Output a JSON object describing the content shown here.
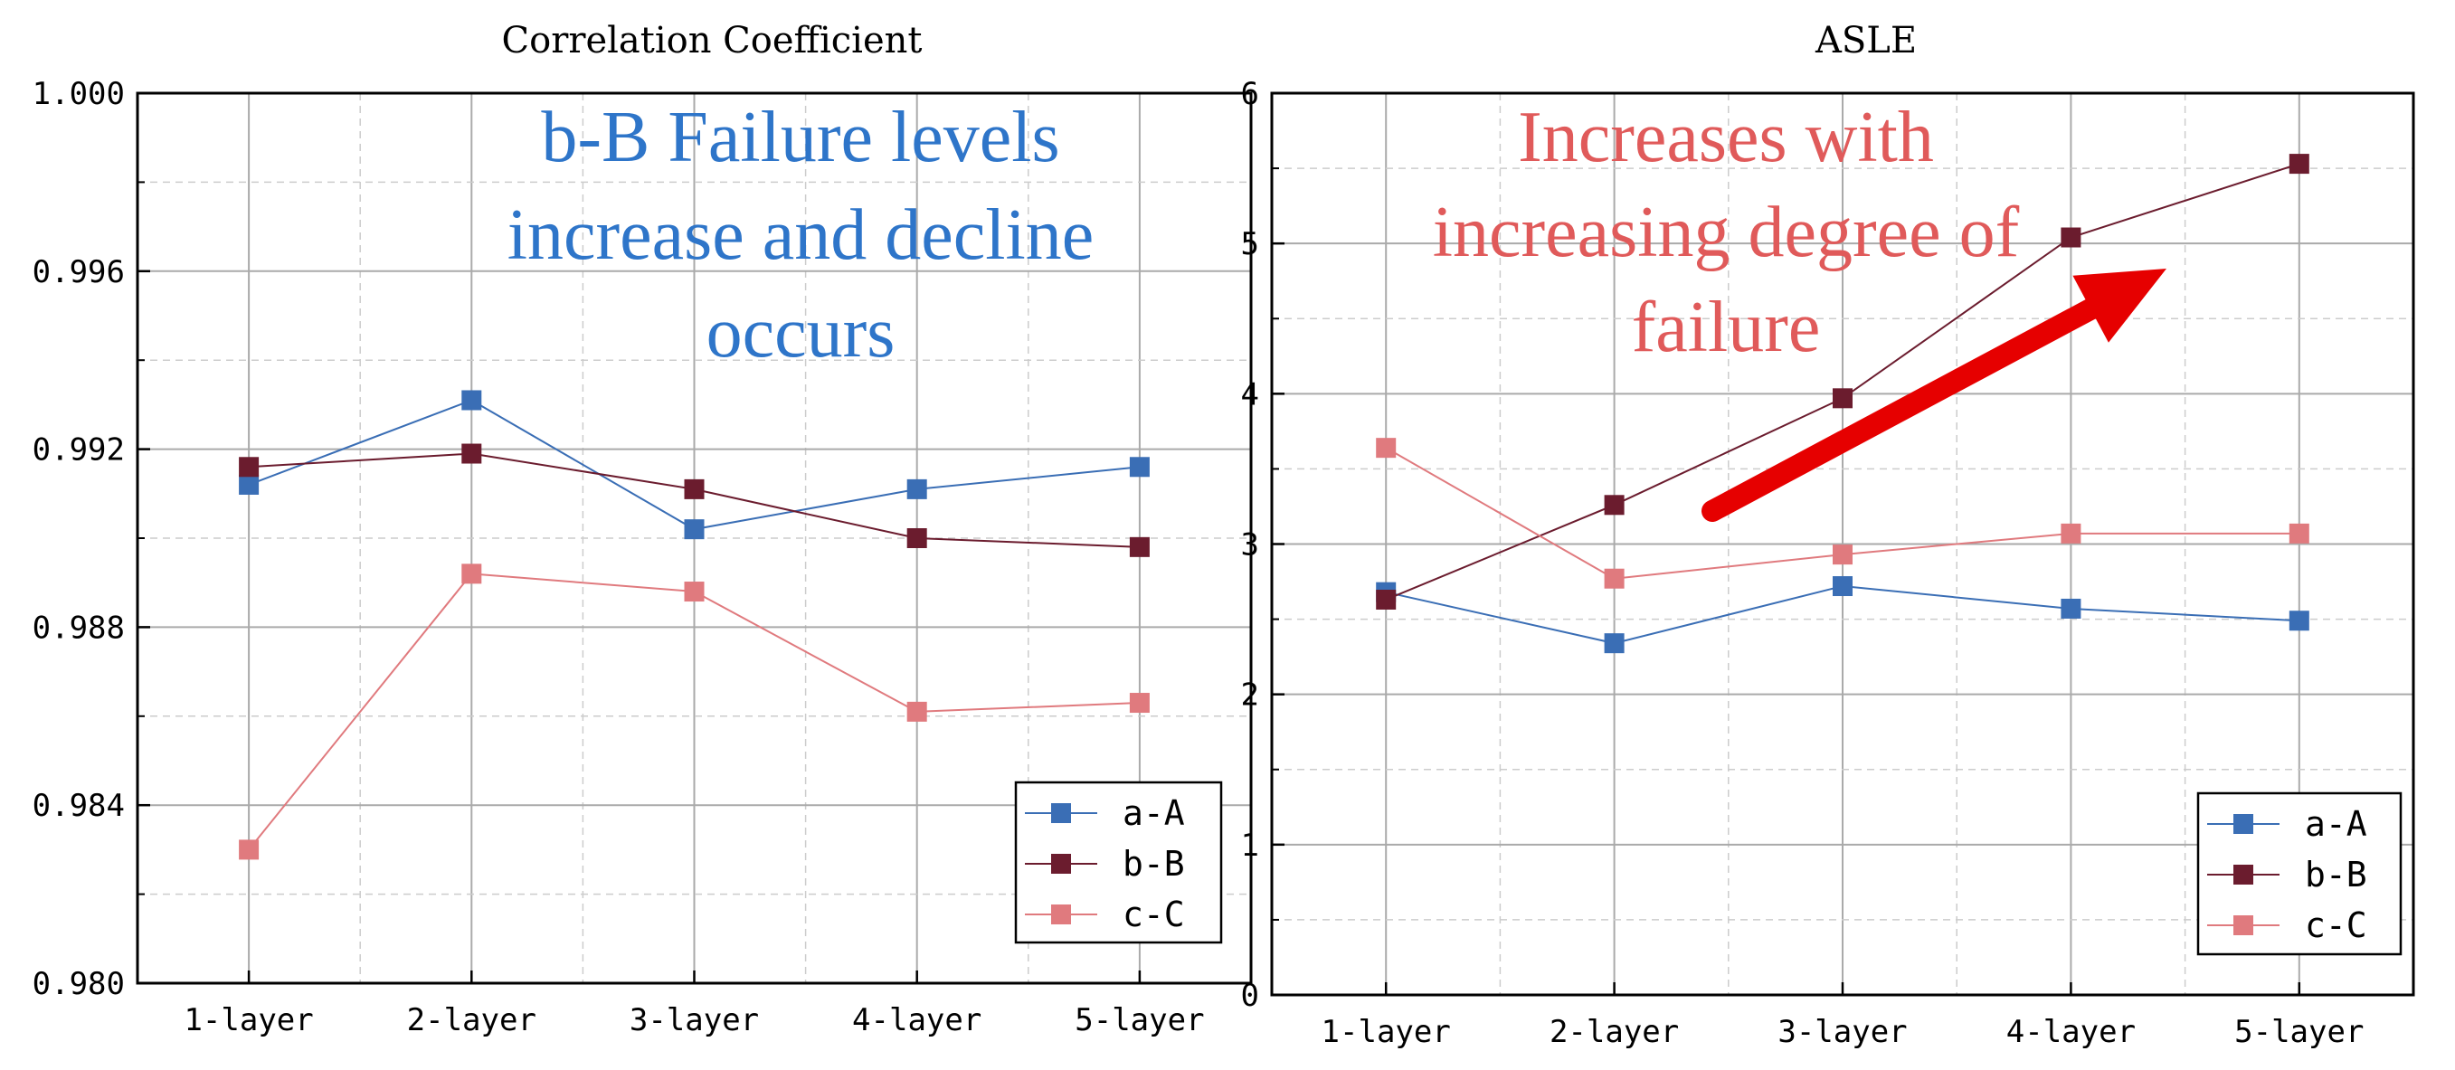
{
  "chart_data": [
    {
      "type": "line",
      "title": "Correlation Coefficient",
      "categories": [
        "1-layer",
        "2-layer",
        "3-layer",
        "4-layer",
        "5-layer"
      ],
      "ylim": [
        0.98,
        1.0
      ],
      "yticks": [
        0.98,
        0.984,
        0.988,
        0.992,
        0.996,
        1.0
      ],
      "ytick_labels": [
        "0.980",
        "0.984",
        "0.988",
        "0.992",
        "0.996",
        "1.000"
      ],
      "series": [
        {
          "name": "a-A",
          "color": "#3a6eb5",
          "values": [
            0.9912,
            0.9931,
            0.9902,
            0.9911,
            0.9916
          ]
        },
        {
          "name": "b-B",
          "color": "#6b1c2e",
          "values": [
            0.9916,
            0.9919,
            0.9911,
            0.99,
            0.9898
          ]
        },
        {
          "name": "c-C",
          "color": "#e07a7e",
          "values": [
            0.983,
            0.9892,
            0.9888,
            0.9861,
            0.9863
          ]
        }
      ],
      "annotation": {
        "lines": [
          "b-B Failure levels",
          "increase and decline",
          "occurs"
        ],
        "color": "#2e75c9"
      },
      "grid": true,
      "legend": "bottom-right"
    },
    {
      "type": "line",
      "title": "ASLE",
      "categories": [
        "1-layer",
        "2-layer",
        "3-layer",
        "4-layer",
        "5-layer"
      ],
      "ylim": [
        0,
        6
      ],
      "yticks": [
        0,
        1,
        2,
        3,
        4,
        5,
        6
      ],
      "ytick_labels": [
        "0",
        "1",
        "2",
        "3",
        "4",
        "5",
        "6"
      ],
      "series": [
        {
          "name": "a-A",
          "color": "#3a6eb5",
          "values": [
            2.68,
            2.34,
            2.72,
            2.57,
            2.49
          ]
        },
        {
          "name": "b-B",
          "color": "#6b1c2e",
          "values": [
            2.63,
            3.26,
            3.97,
            5.04,
            5.53
          ]
        },
        {
          "name": "c-C",
          "color": "#e07a7e",
          "values": [
            3.64,
            2.77,
            2.93,
            3.07,
            3.07
          ]
        }
      ],
      "annotation": {
        "lines": [
          "Increases with",
          "increasing degree of",
          "failure"
        ],
        "color": "#e05a5a"
      },
      "arrow_color": "#e60000",
      "grid": true,
      "legend": "bottom-right"
    }
  ]
}
